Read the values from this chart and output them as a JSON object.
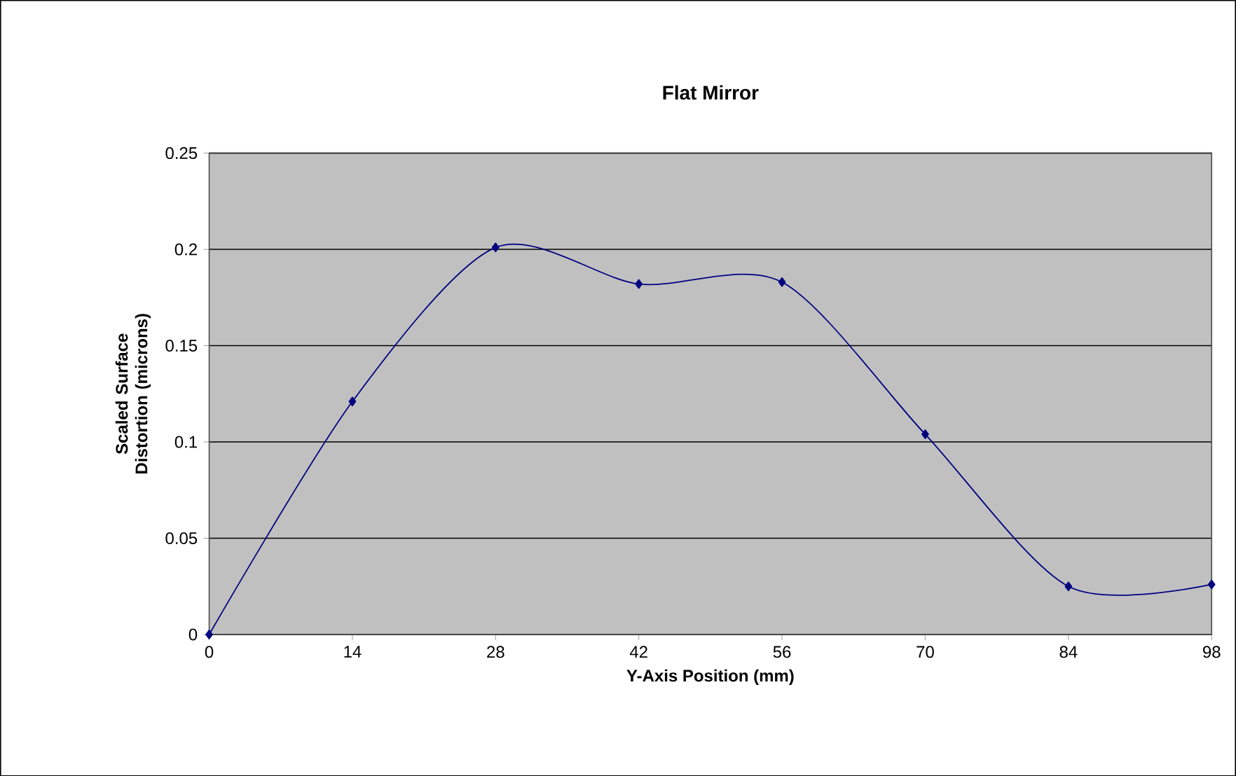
{
  "chart_data": {
    "type": "line",
    "title": "Flat Mirror",
    "xlabel": "Y-Axis Position (mm)",
    "ylabel": "Scaled Surface Distortion (microns)",
    "x": [
      0,
      14,
      28,
      42,
      56,
      70,
      84,
      98
    ],
    "series": [
      {
        "color": "#000080",
        "values": [
          0,
          0.121,
          0.201,
          0.182,
          0.183,
          0.104,
          0.025,
          0.026
        ]
      }
    ],
    "xlim": [
      0,
      98
    ],
    "xticks": [
      0,
      14,
      28,
      42,
      56,
      70,
      84,
      98
    ],
    "ylim": [
      0,
      0.25
    ],
    "yticks": [
      0,
      0.05,
      0.1,
      0.15,
      0.2,
      0.25
    ],
    "grid": "y",
    "marker": "diamond",
    "line_style": "solid"
  }
}
